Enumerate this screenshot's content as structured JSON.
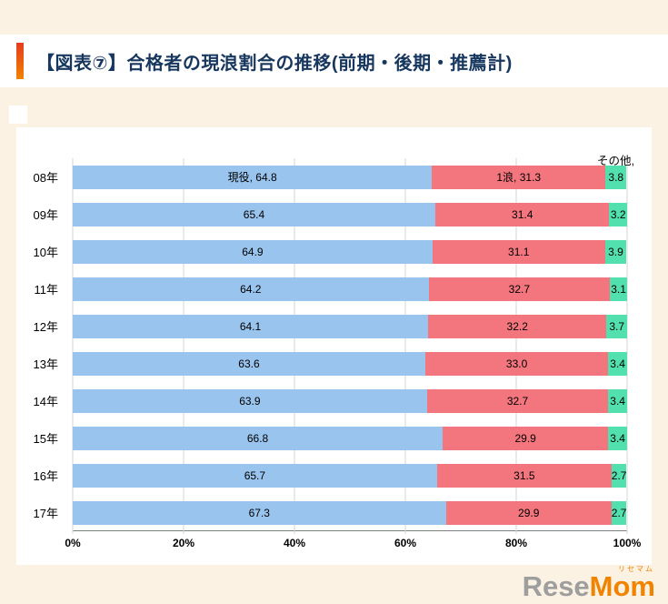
{
  "page": {
    "title": "【図表⑦】合格者の現浪割合の推移(前期・後期・推薦計)"
  },
  "chart_data": {
    "type": "bar",
    "orientation": "horizontal",
    "stacked": true,
    "title": "合格者の現浪割合の推移(前期・後期・推薦計)",
    "categories": [
      "08年",
      "09年",
      "10年",
      "11年",
      "12年",
      "13年",
      "14年",
      "15年",
      "16年",
      "17年"
    ],
    "series": [
      {
        "name": "現役",
        "color": "#99c4ee",
        "values": [
          64.8,
          65.4,
          64.9,
          64.2,
          64.1,
          63.6,
          63.9,
          66.8,
          65.7,
          67.3
        ]
      },
      {
        "name": "1浪",
        "color": "#f3757d",
        "values": [
          31.3,
          31.4,
          31.1,
          32.7,
          32.2,
          33.0,
          32.7,
          29.9,
          31.5,
          29.9
        ]
      },
      {
        "name": "その他",
        "color": "#52e0ae",
        "values": [
          3.8,
          3.2,
          3.9,
          3.1,
          3.7,
          3.4,
          3.4,
          3.4,
          2.7,
          2.7
        ]
      }
    ],
    "x_ticks": [
      "0%",
      "20%",
      "40%",
      "60%",
      "80%",
      "100%"
    ],
    "xlim": [
      0,
      100
    ],
    "grid": true,
    "legend": "inline-first-row",
    "first_row_labels": [
      "現役, 64.8",
      "1浪, 31.3",
      "その他, 3.8"
    ]
  },
  "colors": {
    "background": "#fcf2e4",
    "panel": "#ffffff",
    "title_text": "#17375e",
    "accent_top": "#e63c1e",
    "accent_bottom": "#f08300",
    "axis_line": "#7f7f7f"
  },
  "logo": {
    "rese": "Rese",
    "mom": "Mom",
    "katakana": "リセマム"
  }
}
